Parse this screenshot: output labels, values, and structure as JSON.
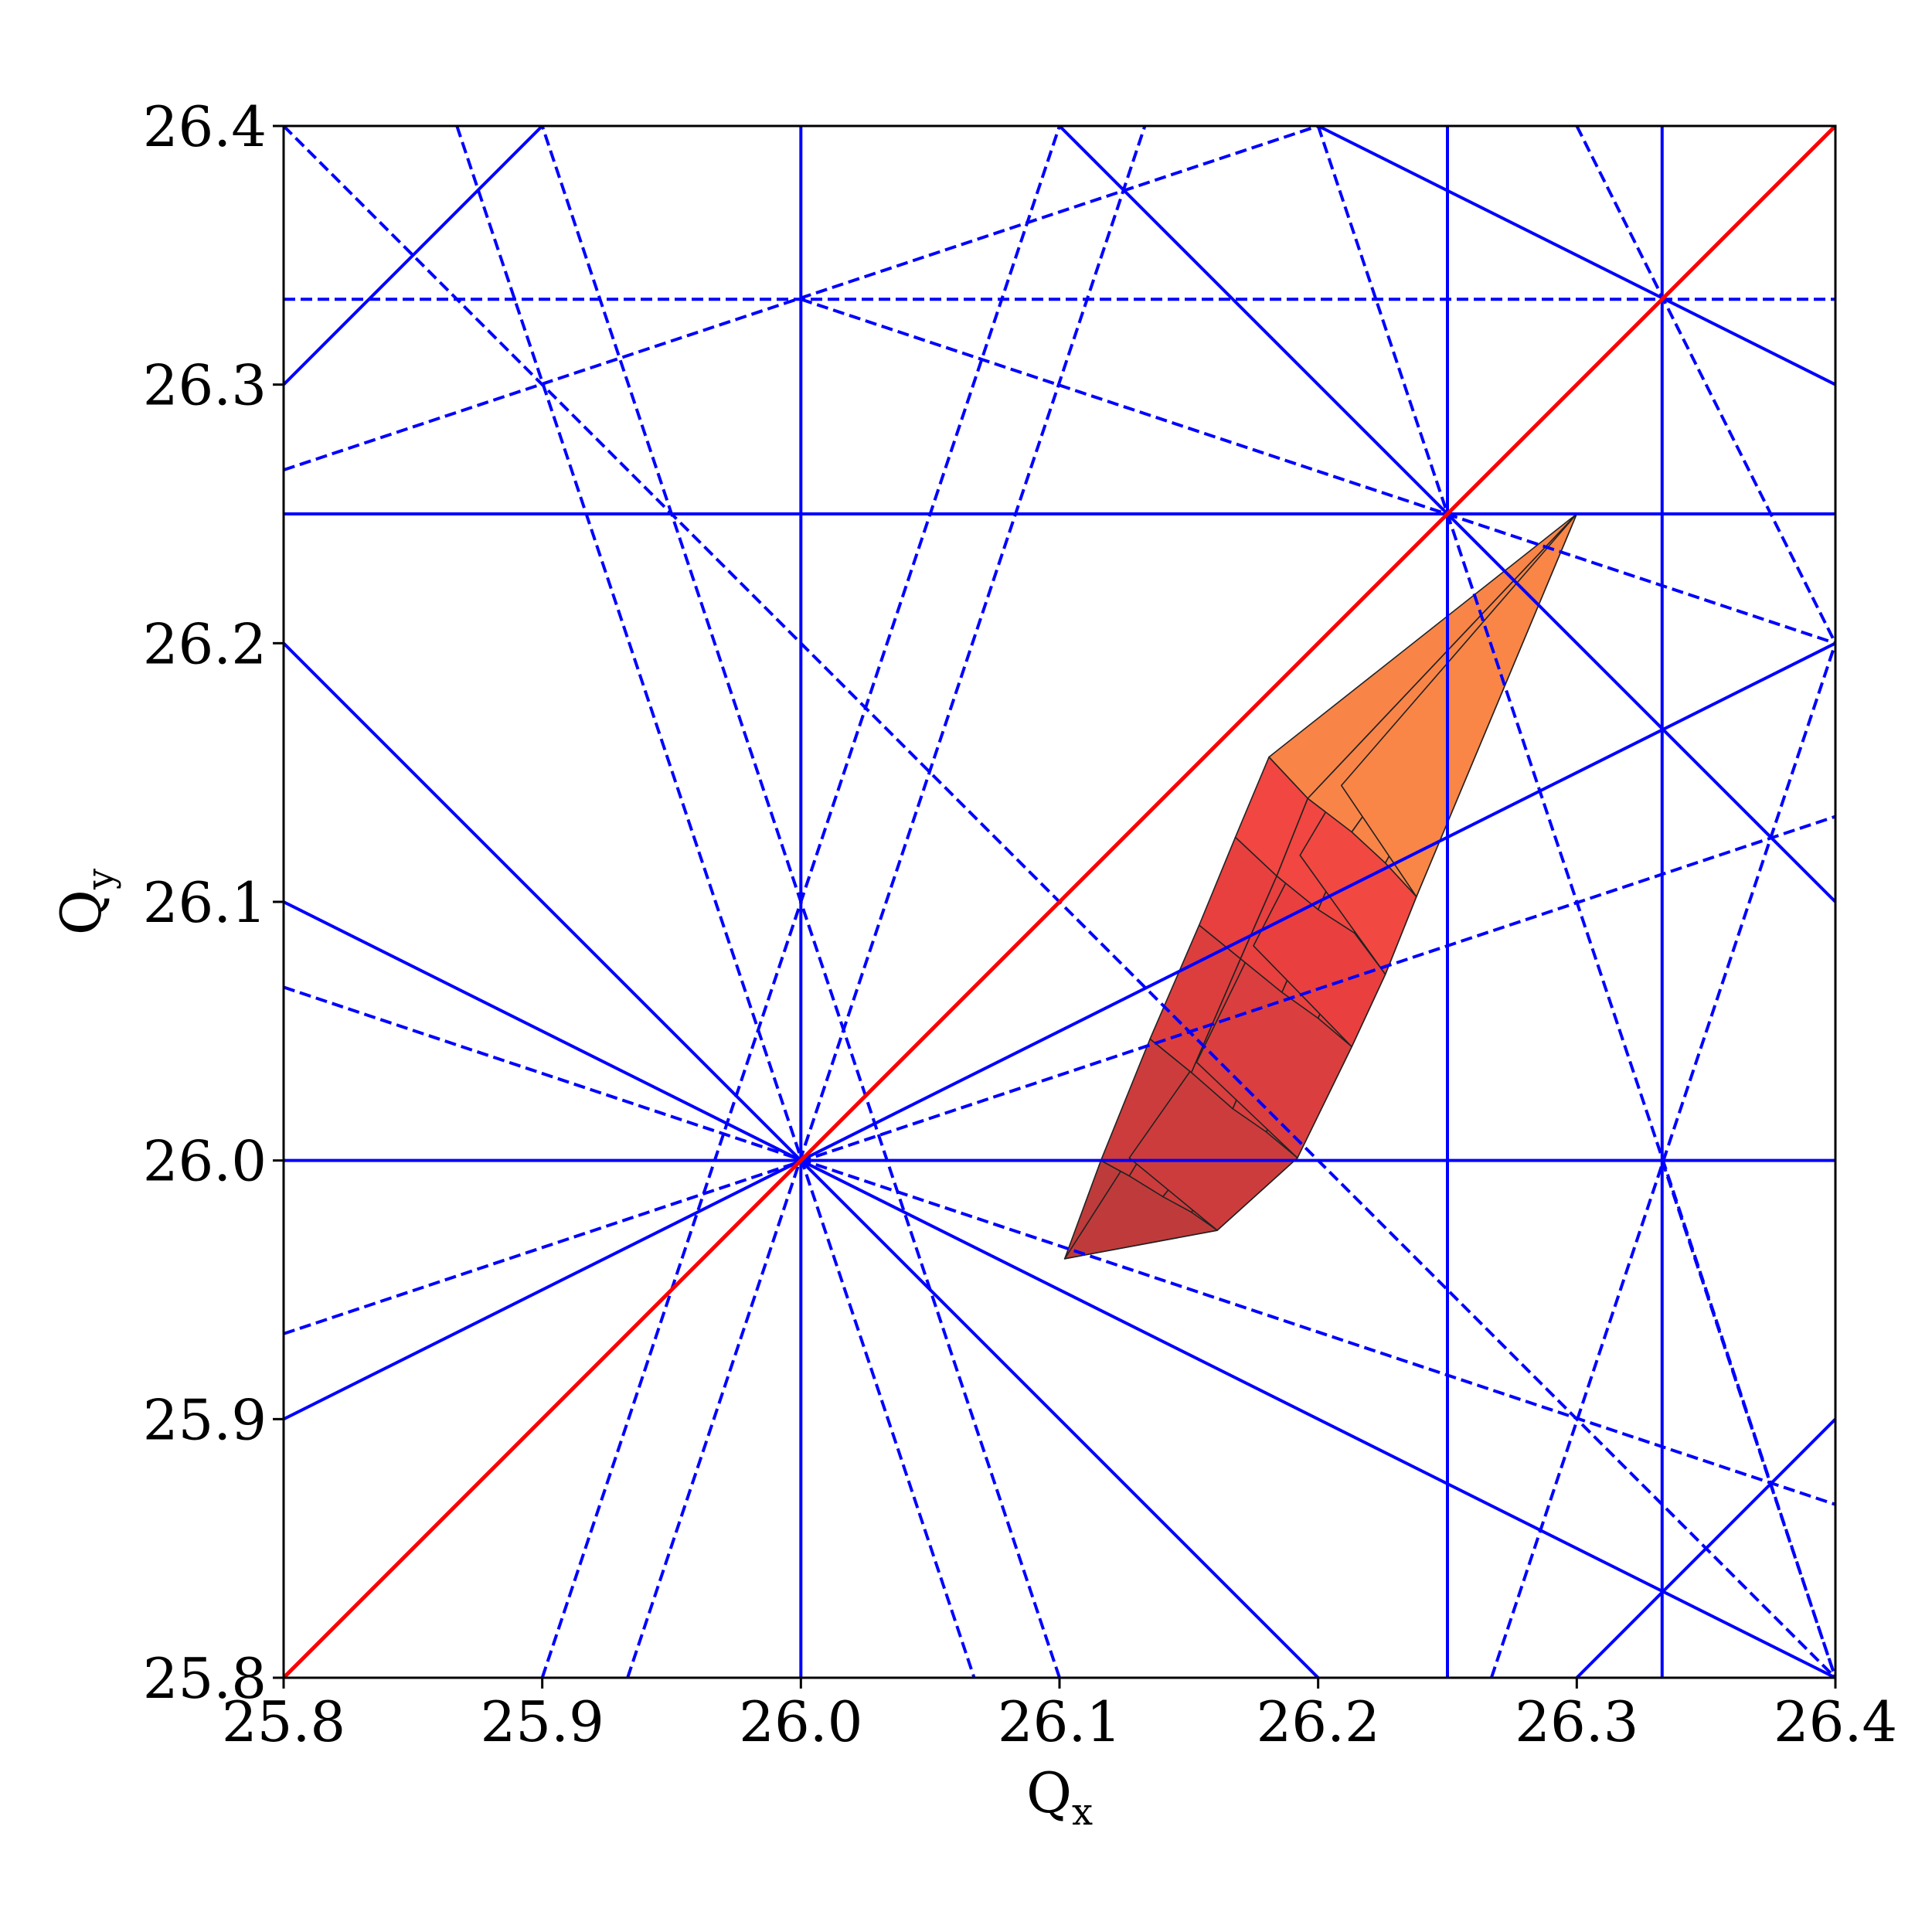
{
  "chart_data": {
    "type": "line",
    "title": "",
    "xlabel": "Q",
    "xlabel_sub": "x",
    "ylabel": "Q",
    "ylabel_sub": "y",
    "xlim": [
      25.8,
      26.4
    ],
    "ylim": [
      25.8,
      26.4
    ],
    "xticks": [
      "25.8",
      "25.9",
      "26.0",
      "26.1",
      "26.2",
      "26.3",
      "26.4"
    ],
    "yticks": [
      "25.8",
      "25.9",
      "26.0",
      "26.1",
      "26.2",
      "26.3",
      "26.4"
    ],
    "grid": false,
    "legend": "none",
    "colors": {
      "resonance": "#0000ff",
      "diagonal": "#ff0000",
      "mesh_edge": "#222222",
      "footprint_tip": "#ffb84c",
      "footprint_core": "#f04040",
      "footprint_tail": "#b83a3a"
    },
    "resonance_lines": [
      {
        "style": "solid",
        "points": [
          [
            26.0,
            25.8
          ],
          [
            26.0,
            26.4
          ]
        ]
      },
      {
        "style": "solid",
        "points": [
          [
            26.25,
            25.8
          ],
          [
            26.25,
            26.4
          ]
        ]
      },
      {
        "style": "solid",
        "points": [
          [
            26.333,
            25.8
          ],
          [
            26.333,
            26.4
          ]
        ]
      },
      {
        "style": "solid",
        "points": [
          [
            25.8,
            26.0
          ],
          [
            26.4,
            26.0
          ]
        ]
      },
      {
        "style": "solid",
        "points": [
          [
            25.8,
            26.25
          ],
          [
            26.4,
            26.25
          ]
        ]
      },
      {
        "style": "dashed",
        "points": [
          [
            25.8,
            26.333
          ],
          [
            26.4,
            26.333
          ]
        ]
      },
      {
        "style": "solid",
        "points": [
          [
            25.8,
            26.3
          ],
          [
            25.9,
            26.4
          ]
        ]
      },
      {
        "style": "solid",
        "points": [
          [
            26.3,
            25.8
          ],
          [
            26.4,
            25.9
          ]
        ]
      },
      {
        "style": "solid",
        "points": [
          [
            26.1,
            26.4
          ],
          [
            26.4,
            26.1
          ]
        ]
      },
      {
        "style": "solid",
        "points": [
          [
            25.8,
            26.2
          ],
          [
            26.2,
            25.8
          ]
        ]
      },
      {
        "style": "solid",
        "points": [
          [
            26.2,
            26.4
          ],
          [
            26.4,
            26.3
          ]
        ]
      },
      {
        "style": "solid",
        "points": [
          [
            25.8,
            26.1
          ],
          [
            26.4,
            25.8
          ]
        ]
      },
      {
        "style": "solid",
        "points": [
          [
            25.8,
            25.9
          ],
          [
            26.4,
            26.2
          ]
        ]
      },
      {
        "style": "dashed",
        "points": [
          [
            25.8,
            26.4
          ],
          [
            26.4,
            25.8
          ]
        ]
      },
      {
        "style": "dashed",
        "points": [
          [
            25.8,
            26.267
          ],
          [
            26.2,
            26.4
          ]
        ]
      },
      {
        "style": "dashed",
        "points": [
          [
            26.0,
            26.333
          ],
          [
            26.4,
            26.2
          ]
        ]
      },
      {
        "style": "dashed",
        "points": [
          [
            25.8,
            26.067
          ],
          [
            26.4,
            25.867
          ]
        ]
      },
      {
        "style": "dashed",
        "points": [
          [
            25.8,
            25.933
          ],
          [
            26.4,
            26.133
          ]
        ]
      },
      {
        "style": "dashed",
        "points": [
          [
            25.867,
            26.4
          ],
          [
            26.067,
            25.8
          ]
        ]
      },
      {
        "style": "dashed",
        "points": [
          [
            25.9,
            25.8
          ],
          [
            26.1,
            26.4
          ]
        ]
      },
      {
        "style": "dashed",
        "points": [
          [
            25.933,
            25.8
          ],
          [
            26.133,
            26.4
          ]
        ]
      },
      {
        "style": "dashed",
        "points": [
          [
            26.1,
            25.8
          ],
          [
            25.9,
            26.4
          ]
        ]
      },
      {
        "style": "dashed",
        "points": [
          [
            26.2,
            26.4
          ],
          [
            26.4,
            25.8
          ]
        ]
      },
      {
        "style": "dashed",
        "points": [
          [
            26.3,
            26.4
          ],
          [
            26.4,
            26.2
          ]
        ]
      },
      {
        "style": "dashed",
        "points": [
          [
            26.267,
            25.8
          ],
          [
            26.4,
            26.2
          ]
        ]
      },
      {
        "style": "dashed",
        "points": [
          [
            26.333,
            26.0
          ],
          [
            26.4,
            25.8
          ]
        ]
      }
    ],
    "diagonal_line": {
      "style": "solid",
      "points": [
        [
          25.8,
          25.8
        ],
        [
          26.4,
          26.4
        ]
      ]
    },
    "footprint": {
      "rows": [
        [
          [
            26.102,
            25.962
          ],
          [
            26.102,
            25.962
          ],
          [
            26.102,
            25.962
          ],
          [
            26.102,
            25.962
          ],
          [
            26.102,
            25.962
          ],
          [
            26.102,
            25.962
          ]
        ],
        [
          [
            26.116,
            26.0
          ],
          [
            26.127,
            25.994
          ],
          [
            26.14,
            25.986
          ],
          [
            26.151,
            25.98
          ],
          [
            26.161,
            25.973
          ],
          [
            26.127,
            26.001
          ]
        ],
        [
          [
            26.135,
            26.047
          ],
          [
            26.151,
            26.034
          ],
          [
            26.167,
            26.02
          ],
          [
            26.18,
            26.011
          ],
          [
            26.192,
            26.001
          ],
          [
            26.153,
            26.038
          ]
        ],
        [
          [
            26.154,
            26.091
          ],
          [
            26.17,
            26.078
          ],
          [
            26.186,
            26.065
          ],
          [
            26.2,
            26.055
          ],
          [
            26.213,
            26.044
          ],
          [
            26.175,
            26.083
          ]
        ],
        [
          [
            26.168,
            26.125
          ],
          [
            26.184,
            26.11
          ],
          [
            26.2,
            26.097
          ],
          [
            26.214,
            26.088
          ],
          [
            26.226,
            26.072
          ],
          [
            26.193,
            26.118
          ]
        ],
        [
          [
            26.181,
            26.156
          ],
          [
            26.196,
            26.14
          ],
          [
            26.213,
            26.127
          ],
          [
            26.226,
            26.115
          ],
          [
            26.238,
            26.102
          ],
          [
            26.209,
            26.145
          ]
        ],
        [
          [
            26.3,
            26.25
          ],
          [
            26.3,
            26.25
          ],
          [
            26.3,
            26.25
          ],
          [
            26.3,
            26.25
          ],
          [
            26.3,
            26.25
          ],
          [
            26.3,
            26.25
          ]
        ]
      ]
    }
  }
}
